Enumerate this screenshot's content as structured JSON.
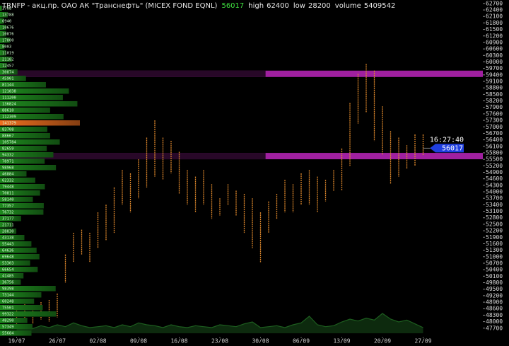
{
  "chart_data": {
    "type": "hilo",
    "title": "TRNFP - акц.пр. ОАО АК \"Транснефть\" (MICEX FOND EQNL)",
    "last": 56017,
    "last_time": "16:27:40",
    "stats": [
      {
        "label": "high",
        "value": 62400
      },
      {
        "label": "low",
        "value": 28200
      },
      {
        "label": "volume",
        "value": 5409542
      }
    ],
    "categories": [
      "19/07",
      null,
      null,
      null,
      null,
      "26/07",
      null,
      null,
      null,
      null,
      "02/08",
      null,
      null,
      null,
      null,
      "09/08",
      null,
      null,
      null,
      null,
      "16/08",
      null,
      null,
      null,
      null,
      "23/08",
      null,
      null,
      null,
      null,
      "30/08",
      null,
      null,
      null,
      null,
      "06/09",
      null,
      null,
      null,
      null,
      "13/09",
      null,
      null,
      null,
      null,
      "20/09",
      null,
      null,
      null,
      null,
      "27/09"
    ],
    "high": [
      48500,
      48800,
      48600,
      48900,
      49000,
      49300,
      51100,
      52100,
      52250,
      52100,
      53050,
      53400,
      54200,
      55000,
      54850,
      55500,
      56500,
      57300,
      56500,
      56350,
      55850,
      55000,
      54700,
      55000,
      54350,
      53700,
      54350,
      54050,
      53900,
      53700,
      53050,
      53550,
      53900,
      54550,
      54350,
      54850,
      55000,
      54700,
      54550,
      55000,
      56000,
      58100,
      59450,
      59900,
      59600,
      57950,
      56800,
      56500,
      56150,
      56650,
      56650
    ],
    "low": [
      47800,
      48000,
      47900,
      48100,
      48000,
      48200,
      49800,
      50750,
      51100,
      50750,
      51400,
      51750,
      52100,
      53400,
      53050,
      53700,
      54200,
      54700,
      54550,
      54850,
      53900,
      53400,
      53050,
      53400,
      52750,
      52900,
      53400,
      52900,
      52100,
      51400,
      50750,
      52100,
      52750,
      53050,
      53050,
      53400,
      53400,
      53050,
      53550,
      54050,
      54050,
      55200,
      57150,
      57650,
      56350,
      55700,
      54350,
      54700,
      55050,
      55200,
      55700
    ],
    "volume": [
      60000,
      70000,
      50000,
      80000,
      60000,
      90000,
      70000,
      110000,
      80000,
      60000,
      70000,
      80000,
      60000,
      90000,
      70000,
      110000,
      90000,
      80000,
      60000,
      90000,
      70000,
      60000,
      80000,
      70000,
      60000,
      90000,
      80000,
      70000,
      100000,
      120000,
      60000,
      70000,
      80000,
      60000,
      90000,
      110000,
      180000,
      90000,
      70000,
      80000,
      120000,
      150000,
      130000,
      160000,
      140000,
      210000,
      150000,
      120000,
      140000,
      100000,
      60000
    ],
    "profile": [
      3708,
      13788,
      6940,
      10676,
      10876,
      17800,
      8003,
      11019,
      21182,
      12457,
      30874,
      45901,
      81144,
      121838,
      111200,
      136824,
      88610,
      112309,
      141379,
      83708,
      88667,
      105784,
      82659,
      94332,
      78971,
      98968,
      46884,
      62332,
      79448,
      70811,
      58140,
      77357,
      76732,
      37177,
      21711,
      28830,
      43138,
      55443,
      64636,
      69648,
      53303,
      66654,
      41485,
      36756,
      98398,
      73144,
      60248,
      75501,
      99322,
      48290,
      57349,
      55684
    ],
    "levels": [
      59450,
      55650
    ],
    "bar_color": "#e0892c",
    "profile_color": "#1f8a1f",
    "profile_max_color": "#f07020",
    "level_color": "#a020a0",
    "volume_color": "#1d5e1f",
    "last_color": "#1f3fe0",
    "ylim": [
      47300,
      62860
    ],
    "yticks": [
      62700,
      62400,
      62100,
      61800,
      61500,
      61200,
      60900,
      60600,
      60300,
      60000,
      59700,
      59400,
      59100,
      58800,
      58500,
      58200,
      57900,
      57600,
      57300,
      57000,
      56700,
      56400,
      56100,
      55800,
      55500,
      55200,
      54900,
      54600,
      54300,
      54000,
      53700,
      53400,
      53100,
      52800,
      52500,
      52200,
      51900,
      51600,
      51300,
      51000,
      50700,
      50400,
      50100,
      49800,
      49500,
      49200,
      48900,
      48600,
      48300,
      48000,
      47700
    ]
  }
}
